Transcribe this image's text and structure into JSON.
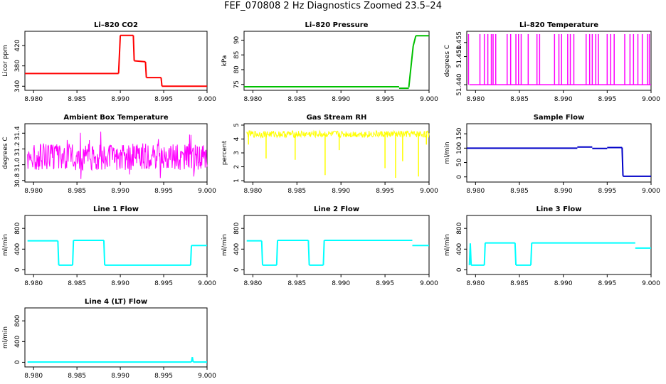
{
  "title": "FEF_070808  2 Hz Diagnostics Zoomed 23.5–24",
  "chart_data": [
    {
      "type": "line",
      "title": "Li–820 CO2",
      "ylabel": "Licor ppm",
      "color": "#ff0000",
      "xticks": [
        "8.980",
        "8.985",
        "8.990",
        "8.995",
        "9.000"
      ],
      "yticks": [
        "340",
        "380",
        "420"
      ],
      "xlim": [
        8.979,
        9.0
      ],
      "ylim": [
        332,
        448
      ],
      "segments": [
        {
          "x": [
            8.979,
            8.9898
          ],
          "y": [
            365,
            365
          ]
        },
        {
          "x": [
            8.9898,
            8.99
          ],
          "y": [
            365,
            440
          ]
        },
        {
          "x": [
            8.99,
            8.9915
          ],
          "y": [
            440,
            440
          ]
        },
        {
          "x": [
            8.9915,
            8.9916
          ],
          "y": [
            440,
            390
          ]
        },
        {
          "x": [
            8.9916,
            8.9929
          ],
          "y": [
            390,
            388
          ]
        },
        {
          "x": [
            8.9929,
            8.993
          ],
          "y": [
            388,
            357
          ]
        },
        {
          "x": [
            8.993,
            8.9947
          ],
          "y": [
            357,
            357
          ]
        },
        {
          "x": [
            8.9947,
            8.9948
          ],
          "y": [
            357,
            340
          ]
        },
        {
          "x": [
            8.9948,
            9.0
          ],
          "y": [
            340,
            340
          ]
        }
      ]
    },
    {
      "type": "line",
      "title": "Li–820 Pressure",
      "ylabel": "kPa",
      "color": "#00c000",
      "xticks": [
        "8.980",
        "8.985",
        "8.990",
        "8.995",
        "9.000"
      ],
      "yticks": [
        "75",
        "80",
        "85",
        "90"
      ],
      "xlim": [
        8.979,
        9.0
      ],
      "ylim": [
        73,
        93
      ],
      "segments": [
        {
          "x": [
            8.979,
            8.9966
          ],
          "y": [
            74.2,
            74.2
          ]
        },
        {
          "x": [
            8.9966,
            8.9977
          ],
          "y": [
            73.7,
            73.7
          ]
        },
        {
          "x": [
            8.9977,
            8.9982
          ],
          "y": [
            74,
            88
          ]
        },
        {
          "x": [
            8.9982,
            8.9985
          ],
          "y": [
            88,
            91.5
          ]
        },
        {
          "x": [
            8.9985,
            9.0
          ],
          "y": [
            91.5,
            91.5
          ]
        }
      ]
    },
    {
      "type": "line",
      "title": "Li–820 Temperature",
      "ylabel": "degrees C",
      "color": "#ff00ff",
      "xticks": [
        "8.980",
        "8.985",
        "8.990",
        "8.995",
        "9.000"
      ],
      "yticks": [
        "51.440",
        "51.450",
        "51.455"
      ],
      "xlim": [
        8.979,
        9.0
      ],
      "ylim": [
        51.438,
        51.459
      ],
      "baseline": 51.44,
      "spike_top": 51.458,
      "spikes": [
        8.9792,
        8.9805,
        8.981,
        8.9814,
        8.9818,
        8.982,
        8.9823,
        8.9836,
        8.984,
        8.9846,
        8.9849,
        8.9852,
        8.986,
        8.987,
        8.9873,
        8.989,
        8.9895,
        8.9898,
        8.9905,
        8.9908,
        8.9912,
        8.9926,
        8.993,
        8.9933,
        8.9937,
        8.994,
        8.995,
        8.9954,
        8.9958,
        8.997,
        8.9976,
        8.998,
        8.9985,
        8.999,
        8.9996,
        8.9998
      ]
    },
    {
      "type": "line",
      "title": "Ambient Box Temperature",
      "ylabel": "degrees C",
      "color": "#ff00ff",
      "xticks": [
        "8.980",
        "8.985",
        "8.990",
        "8.995",
        "9.000"
      ],
      "yticks": [
        "30.8",
        "31.0",
        "31.2",
        "31.4"
      ],
      "xlim": [
        8.979,
        9.0
      ],
      "ylim": [
        30.78,
        31.52
      ],
      "noise": {
        "center": 31.1,
        "amp": 0.17,
        "spike_amp": 0.32
      }
    },
    {
      "type": "line",
      "title": "Gas Stream RH",
      "ylabel": "percent",
      "color": "#ffff00",
      "xticks": [
        "8.980",
        "8.985",
        "8.990",
        "8.995",
        "9.000"
      ],
      "yticks": [
        "1",
        "2",
        "3",
        "4",
        "5"
      ],
      "xlim": [
        8.979,
        9.0
      ],
      "ylim": [
        0.9,
        5.1
      ],
      "noise": {
        "center": 4.35,
        "amp": 0.25
      },
      "dips": [
        {
          "x": 8.9795,
          "y": 3.6
        },
        {
          "x": 8.9815,
          "y": 2.6
        },
        {
          "x": 8.9848,
          "y": 2.5
        },
        {
          "x": 8.9882,
          "y": 1.4
        },
        {
          "x": 8.9898,
          "y": 3.2
        },
        {
          "x": 8.995,
          "y": 1.9
        },
        {
          "x": 8.9962,
          "y": 1.2
        },
        {
          "x": 8.997,
          "y": 2.4
        },
        {
          "x": 8.9988,
          "y": 1.3
        },
        {
          "x": 8.9997,
          "y": 3.6
        }
      ]
    },
    {
      "type": "line",
      "title": "Sample Flow",
      "ylabel": "ml/min",
      "color": "#0000c8",
      "xticks": [
        "8.980",
        "8.985",
        "8.990",
        "8.995",
        "9.000"
      ],
      "yticks": [
        "0",
        "50",
        "100",
        "150"
      ],
      "xlim": [
        8.979,
        9.0
      ],
      "ylim": [
        -18,
        185
      ],
      "segments": [
        {
          "x": [
            8.979,
            8.9916
          ],
          "y": [
            100,
            100
          ]
        },
        {
          "x": [
            8.9916,
            8.9933
          ],
          "y": [
            104,
            104
          ]
        },
        {
          "x": [
            8.9933,
            8.995
          ],
          "y": [
            99,
            99
          ]
        },
        {
          "x": [
            8.995,
            8.9967
          ],
          "y": [
            102,
            102
          ]
        },
        {
          "x": [
            8.9967,
            8.9968
          ],
          "y": [
            102,
            3
          ]
        },
        {
          "x": [
            8.9968,
            9.0
          ],
          "y": [
            2,
            2
          ]
        }
      ]
    },
    {
      "type": "line",
      "title": "Line 1 Flow",
      "ylabel": "ml/min",
      "color": "#00ffff",
      "xticks": [
        "8.980",
        "8.985",
        "8.990",
        "8.995",
        "9.000"
      ],
      "yticks": [
        "0",
        "400",
        "800"
      ],
      "xlim": [
        8.979,
        9.0
      ],
      "ylim": [
        -90,
        1050
      ],
      "segments": [
        {
          "x": [
            8.9793,
            8.9828
          ],
          "y": [
            560,
            560
          ]
        },
        {
          "x": [
            8.9828,
            8.9829
          ],
          "y": [
            560,
            90
          ]
        },
        {
          "x": [
            8.9829,
            8.9845
          ],
          "y": [
            90,
            90
          ]
        },
        {
          "x": [
            8.9845,
            8.9846
          ],
          "y": [
            90,
            570
          ]
        },
        {
          "x": [
            8.9846,
            8.9881
          ],
          "y": [
            570,
            570
          ]
        },
        {
          "x": [
            8.9881,
            8.9882
          ],
          "y": [
            570,
            90
          ]
        },
        {
          "x": [
            8.9882,
            8.9981
          ],
          "y": [
            90,
            90
          ]
        },
        {
          "x": [
            8.9981,
            8.9982
          ],
          "y": [
            90,
            470
          ]
        },
        {
          "x": [
            8.9982,
            9.0
          ],
          "y": [
            470,
            470
          ]
        }
      ]
    },
    {
      "type": "line",
      "title": "Line 2 Flow",
      "ylabel": "ml/min",
      "color": "#00ffff",
      "xticks": [
        "8.980",
        "8.985",
        "8.990",
        "8.995",
        "9.000"
      ],
      "yticks": [
        "0",
        "400",
        "800"
      ],
      "xlim": [
        8.979,
        9.0
      ],
      "ylim": [
        -90,
        1050
      ],
      "segments": [
        {
          "x": [
            8.9793,
            8.981
          ],
          "y": [
            560,
            560
          ]
        },
        {
          "x": [
            8.981,
            8.9811
          ],
          "y": [
            560,
            90
          ]
        },
        {
          "x": [
            8.9811,
            8.9827
          ],
          "y": [
            90,
            90
          ]
        },
        {
          "x": [
            8.9827,
            8.9828
          ],
          "y": [
            90,
            570
          ]
        },
        {
          "x": [
            8.9828,
            8.9863
          ],
          "y": [
            570,
            570
          ]
        },
        {
          "x": [
            8.9863,
            8.9864
          ],
          "y": [
            570,
            90
          ]
        },
        {
          "x": [
            8.9864,
            8.988
          ],
          "y": [
            90,
            90
          ]
        },
        {
          "x": [
            8.988,
            8.9881
          ],
          "y": [
            90,
            570
          ]
        },
        {
          "x": [
            8.9881,
            8.9981
          ],
          "y": [
            570,
            570
          ]
        },
        {
          "x": [
            8.9981,
            9.0
          ],
          "y": [
            470,
            470
          ]
        }
      ]
    },
    {
      "type": "line",
      "title": "Line 3 Flow",
      "ylabel": "ml/min",
      "color": "#00ffff",
      "xticks": [
        "8.980",
        "8.985",
        "8.990",
        "8.995",
        "9.000"
      ],
      "yticks": [
        "0",
        "400",
        "800"
      ],
      "xlim": [
        8.979,
        9.0
      ],
      "ylim": [
        -90,
        1050
      ],
      "segments": [
        {
          "x": [
            8.9793,
            8.9794
          ],
          "y": [
            90,
            510
          ]
        },
        {
          "x": [
            8.9794,
            8.9795
          ],
          "y": [
            510,
            90
          ]
        },
        {
          "x": [
            8.9795,
            8.981
          ],
          "y": [
            90,
            90
          ]
        },
        {
          "x": [
            8.981,
            8.9811
          ],
          "y": [
            90,
            520
          ]
        },
        {
          "x": [
            8.9811,
            8.9845
          ],
          "y": [
            520,
            520
          ]
        },
        {
          "x": [
            8.9845,
            8.9846
          ],
          "y": [
            520,
            90
          ]
        },
        {
          "x": [
            8.9846,
            8.9863
          ],
          "y": [
            90,
            90
          ]
        },
        {
          "x": [
            8.9863,
            8.9864
          ],
          "y": [
            90,
            520
          ]
        },
        {
          "x": [
            8.9864,
            8.9982
          ],
          "y": [
            520,
            520
          ]
        },
        {
          "x": [
            8.9982,
            9.0
          ],
          "y": [
            420,
            420
          ]
        }
      ]
    },
    {
      "type": "line",
      "title": "Line 4 (LT) Flow",
      "ylabel": "ml/min",
      "color": "#00ffff",
      "xticks": [
        "8.980",
        "8.985",
        "8.990",
        "8.995",
        "9.000"
      ],
      "yticks": [
        "0",
        "400",
        "800"
      ],
      "xlim": [
        8.979,
        9.0
      ],
      "ylim": [
        -90,
        1050
      ],
      "segments": [
        {
          "x": [
            8.9793,
            8.9982
          ],
          "y": [
            5,
            5
          ]
        },
        {
          "x": [
            8.9982,
            8.9983
          ],
          "y": [
            5,
            100
          ]
        },
        {
          "x": [
            8.9983,
            8.9984
          ],
          "y": [
            100,
            5
          ]
        },
        {
          "x": [
            8.9984,
            9.0
          ],
          "y": [
            5,
            5
          ]
        }
      ]
    }
  ]
}
